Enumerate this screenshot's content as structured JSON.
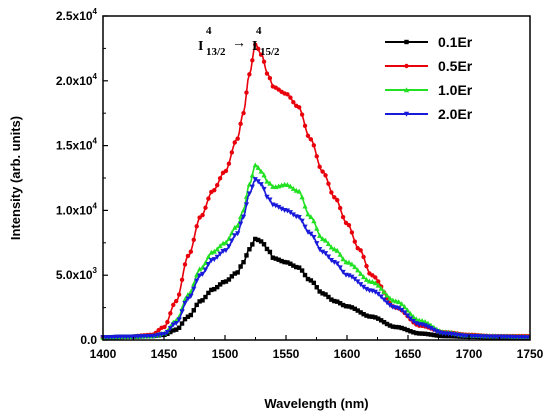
{
  "chart_data": {
    "type": "line",
    "title": "",
    "xlabel": "Wavelength (nm)",
    "ylabel": "Intensity (arb. units)",
    "xlim": [
      1400,
      1750
    ],
    "ylim": [
      0,
      25000
    ],
    "x_ticks": [
      1400,
      1450,
      1500,
      1550,
      1600,
      1650,
      1700,
      1750
    ],
    "x_tick_labels": [
      "1400",
      "1450",
      "1500",
      "1550",
      "1600",
      "1650",
      "1700",
      "1750"
    ],
    "y_ticks": [
      0,
      5000,
      10000,
      15000,
      20000,
      25000
    ],
    "y_tick_labels": [
      {
        "mantissa": "0.0",
        "exponent": ""
      },
      {
        "mantissa": "5.0x10",
        "exponent": "3"
      },
      {
        "mantissa": "1.0x10",
        "exponent": "4"
      },
      {
        "mantissa": "1.5x10",
        "exponent": "4"
      },
      {
        "mantissa": "2.0x10",
        "exponent": "4"
      },
      {
        "mantissa": "2.5x10",
        "exponent": "4"
      }
    ],
    "grid": false,
    "legend_position": "top-right",
    "annotation": {
      "from_super": "4",
      "from_main": "I",
      "from_sub": "13/2",
      "arrow": "→",
      "to_super": "4",
      "to_main": "I",
      "to_sub": "15/2"
    },
    "series": [
      {
        "name": "0.1Er",
        "color": "#000000",
        "marker": "square",
        "x": [
          1400,
          1420,
          1440,
          1450,
          1460,
          1470,
          1480,
          1490,
          1500,
          1510,
          1515,
          1520,
          1525,
          1530,
          1535,
          1540,
          1550,
          1560,
          1570,
          1580,
          1590,
          1600,
          1620,
          1640,
          1660,
          1680,
          1700,
          1720,
          1750
        ],
        "y": [
          200,
          250,
          300,
          400,
          800,
          1800,
          3000,
          3900,
          4500,
          5200,
          6000,
          7000,
          7800,
          7600,
          7000,
          6300,
          6000,
          5600,
          4600,
          3600,
          3000,
          2600,
          1800,
          1000,
          500,
          300,
          250,
          200,
          200
        ]
      },
      {
        "name": "0.5Er",
        "color": "#e8000b",
        "marker": "circle",
        "x": [
          1400,
          1420,
          1440,
          1450,
          1460,
          1470,
          1480,
          1490,
          1500,
          1510,
          1515,
          1520,
          1525,
          1530,
          1535,
          1540,
          1550,
          1560,
          1570,
          1580,
          1590,
          1600,
          1610,
          1620,
          1640,
          1660,
          1680,
          1700,
          1720,
          1750
        ],
        "y": [
          200,
          250,
          400,
          1000,
          3000,
          6500,
          9500,
          11500,
          13000,
          15500,
          17500,
          20500,
          22800,
          22000,
          20500,
          19500,
          19000,
          18000,
          15500,
          13000,
          11000,
          9000,
          7000,
          5000,
          2500,
          1100,
          600,
          400,
          300,
          300
        ]
      },
      {
        "name": "1.0Er",
        "color": "#22e022",
        "marker": "triangle-up",
        "x": [
          1400,
          1420,
          1440,
          1450,
          1460,
          1470,
          1480,
          1490,
          1500,
          1510,
          1515,
          1520,
          1525,
          1530,
          1535,
          1540,
          1550,
          1560,
          1570,
          1580,
          1590,
          1600,
          1620,
          1640,
          1660,
          1680,
          1700,
          1720,
          1750
        ],
        "y": [
          200,
          250,
          300,
          500,
          1500,
          3500,
          5500,
          6800,
          7500,
          8800,
          10000,
          12000,
          13500,
          13000,
          12200,
          11800,
          12000,
          11500,
          9500,
          7800,
          7000,
          6000,
          4500,
          3000,
          1500,
          600,
          350,
          300,
          250
        ]
      },
      {
        "name": "2.0Er",
        "color": "#1a1adb",
        "marker": "triangle-down",
        "x": [
          1400,
          1420,
          1440,
          1450,
          1460,
          1470,
          1480,
          1490,
          1500,
          1510,
          1515,
          1520,
          1525,
          1530,
          1535,
          1540,
          1550,
          1560,
          1570,
          1580,
          1590,
          1600,
          1620,
          1640,
          1660,
          1680,
          1700,
          1720,
          1750
        ],
        "y": [
          200,
          250,
          300,
          450,
          1300,
          3200,
          5000,
          6200,
          6900,
          8200,
          9500,
          11300,
          12400,
          12000,
          11000,
          10400,
          10000,
          9500,
          8200,
          6800,
          6000,
          5000,
          3800,
          2500,
          1200,
          500,
          300,
          250,
          200
        ]
      }
    ]
  }
}
